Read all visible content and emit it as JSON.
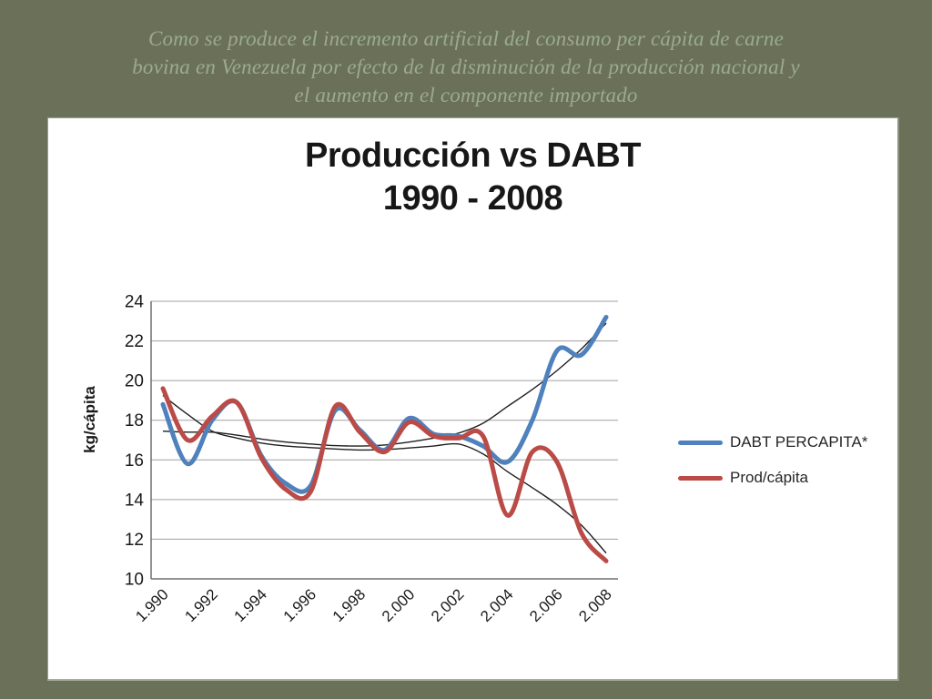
{
  "slide": {
    "background_color": "#6B7158",
    "title_color": "#9AAB8E",
    "title_lines": [
      "Como se produce el incremento artificial del consumo per cápita de carne",
      "bovina  en Venezuela por efecto de la disminución de la producción nacional y",
      "el aumento en el componente importado"
    ]
  },
  "chart_data": {
    "type": "line",
    "title_line1": "Producción vs DABT",
    "title_line2": "1990 - 2008",
    "ylabel": "kg/cápita",
    "ylim": [
      10,
      24
    ],
    "yticks": [
      10,
      12,
      14,
      16,
      18,
      20,
      22,
      24
    ],
    "grid": "horizontal",
    "legend_position": "right",
    "x": [
      1990,
      1991,
      1992,
      1993,
      1994,
      1995,
      1996,
      1997,
      1998,
      1999,
      2000,
      2001,
      2002,
      2003,
      2004,
      2005,
      2006,
      2007,
      2008
    ],
    "xtick_labels": [
      "1.990",
      "1.992",
      "1.994",
      "1.996",
      "1.998",
      "2.000",
      "2.002",
      "2.004",
      "2.006",
      "2.008"
    ],
    "axis_color": "#6e6e6e",
    "gridline_color": "#a0a0a0",
    "series": [
      {
        "name": "DABT PERCAPITA*",
        "color": "#4F81BD",
        "width": 5,
        "smooth": true,
        "values": [
          18.8,
          15.8,
          18.0,
          18.9,
          16.2,
          14.8,
          14.7,
          18.5,
          17.5,
          16.5,
          18.1,
          17.3,
          17.2,
          16.7,
          15.9,
          18.0,
          21.5,
          21.3,
          23.2
        ]
      },
      {
        "name": "Prod/cápita",
        "color": "#BA4B47",
        "width": 5,
        "smooth": true,
        "values": [
          19.6,
          17.0,
          18.2,
          18.9,
          16.1,
          14.5,
          14.4,
          18.7,
          17.4,
          16.4,
          17.9,
          17.2,
          17.1,
          17.2,
          13.2,
          16.4,
          15.9,
          12.3,
          10.9
        ]
      }
    ],
    "trendlines": [
      {
        "for": "DABT PERCAPITA*",
        "color": "#1f1f1f",
        "width": 1.4,
        "values": [
          17.45,
          17.4,
          17.4,
          17.25,
          17.05,
          16.9,
          16.8,
          16.72,
          16.7,
          16.75,
          16.9,
          17.1,
          17.35,
          17.85,
          18.7,
          19.55,
          20.5,
          21.6,
          22.9
        ]
      },
      {
        "for": "Prod/cápita",
        "color": "#1f1f1f",
        "width": 1.4,
        "values": [
          19.25,
          18.3,
          17.45,
          17.1,
          16.85,
          16.7,
          16.62,
          16.55,
          16.5,
          16.52,
          16.6,
          16.7,
          16.8,
          16.3,
          15.4,
          14.6,
          13.75,
          12.7,
          11.3
        ]
      }
    ]
  }
}
